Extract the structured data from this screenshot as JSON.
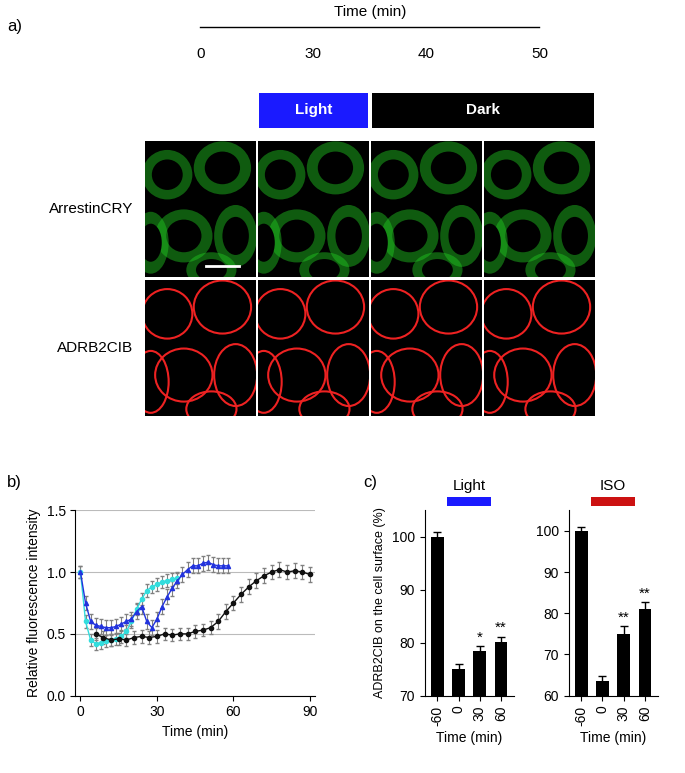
{
  "panel_a": {
    "panel_label": "a)",
    "time_label": "Time (min)",
    "times": [
      0,
      30,
      40,
      50
    ],
    "phases": [
      {
        "text": "Light",
        "color": "#1a1aff",
        "from": 30,
        "to": 30
      },
      {
        "text": "Dark",
        "color": "#000000",
        "from": 40,
        "to": 50
      }
    ],
    "rows": [
      {
        "label": "ArrestinCRY",
        "color": "#22cc22"
      },
      {
        "label": "ADRB2CIB",
        "color": "#ee2222"
      }
    ]
  },
  "chart_data": [
    {
      "type": "line",
      "panel_label": "b)",
      "x_label": "Time (min)",
      "y_label": "Relative fluorescence intensity",
      "xlim": [
        -2,
        92
      ],
      "xticks": [
        0,
        30,
        60,
        90
      ],
      "ylim": [
        0.0,
        1.5
      ],
      "yticks": [
        {
          "value": 0.0,
          "label": "0.0"
        },
        {
          "value": 0.5,
          "label": "0.5"
        },
        {
          "value": 1.0,
          "label": "1.0"
        },
        {
          "value": 1.5,
          "label": "1.5"
        }
      ],
      "grid": true,
      "series": [
        {
          "color": "#33dddd",
          "marker": "o",
          "x": [
            0,
            2,
            4,
            6,
            8,
            10,
            12,
            14,
            16,
            18,
            20,
            22,
            24,
            26,
            28,
            30,
            32,
            34,
            36,
            38
          ],
          "values": [
            1.0,
            0.6,
            0.45,
            0.42,
            0.43,
            0.44,
            0.45,
            0.46,
            0.48,
            0.52,
            0.6,
            0.7,
            0.78,
            0.85,
            0.88,
            0.9,
            0.92,
            0.93,
            0.94,
            0.95
          ],
          "errors": [
            0.05,
            0.05,
            0.05,
            0.05,
            0.05,
            0.05,
            0.05,
            0.05,
            0.05,
            0.05,
            0.05,
            0.05,
            0.05,
            0.05,
            0.05,
            0.05,
            0.05,
            0.05,
            0.05,
            0.05
          ]
        },
        {
          "color": "#2233dd",
          "marker": "^",
          "x": [
            0,
            2,
            4,
            6,
            8,
            10,
            12,
            14,
            16,
            18,
            20,
            22,
            24,
            26,
            28,
            30,
            32,
            34,
            36,
            38,
            40,
            42,
            44,
            46,
            48,
            50,
            52,
            54,
            56,
            58
          ],
          "values": [
            1.0,
            0.75,
            0.6,
            0.57,
            0.56,
            0.55,
            0.55,
            0.56,
            0.58,
            0.6,
            0.62,
            0.68,
            0.72,
            0.6,
            0.55,
            0.62,
            0.72,
            0.8,
            0.87,
            0.93,
            0.98,
            1.02,
            1.05,
            1.05,
            1.07,
            1.08,
            1.06,
            1.05,
            1.05,
            1.05
          ],
          "errors": [
            0.05,
            0.06,
            0.06,
            0.06,
            0.06,
            0.06,
            0.06,
            0.06,
            0.06,
            0.06,
            0.06,
            0.06,
            0.06,
            0.06,
            0.06,
            0.06,
            0.06,
            0.06,
            0.06,
            0.06,
            0.06,
            0.06,
            0.06,
            0.06,
            0.06,
            0.06,
            0.06,
            0.06,
            0.06,
            0.06
          ]
        },
        {
          "color": "#111111",
          "marker": "o",
          "x": [
            6,
            9,
            12,
            15,
            18,
            21,
            24,
            27,
            30,
            33,
            36,
            39,
            42,
            45,
            48,
            51,
            54,
            57,
            60,
            63,
            66,
            69,
            72,
            75,
            78,
            81,
            84,
            87,
            90
          ],
          "values": [
            0.5,
            0.47,
            0.45,
            0.46,
            0.45,
            0.47,
            0.48,
            0.47,
            0.48,
            0.5,
            0.49,
            0.5,
            0.5,
            0.52,
            0.53,
            0.55,
            0.6,
            0.68,
            0.75,
            0.82,
            0.88,
            0.93,
            0.97,
            1.0,
            1.02,
            1.0,
            1.01,
            1.0,
            0.98
          ],
          "errors": [
            0.05,
            0.05,
            0.05,
            0.05,
            0.05,
            0.05,
            0.05,
            0.05,
            0.05,
            0.05,
            0.05,
            0.05,
            0.05,
            0.05,
            0.05,
            0.05,
            0.06,
            0.06,
            0.06,
            0.06,
            0.06,
            0.06,
            0.06,
            0.06,
            0.06,
            0.06,
            0.06,
            0.06,
            0.06
          ]
        }
      ]
    },
    {
      "type": "bar",
      "panel_label": "c)",
      "title": "Light",
      "stimulus_color": "#1a1aff",
      "x_label": "Time (min)",
      "y_label": "ADRB2CIB on the cell surface (%)",
      "categories": [
        "-60",
        "0",
        "30",
        "60"
      ],
      "values": [
        100,
        75,
        78.5,
        80.2
      ],
      "errors": [
        0.8,
        1.0,
        0.9,
        0.9
      ],
      "significance": [
        null,
        null,
        "*",
        "**"
      ],
      "color": "#000000",
      "ylim": [
        70,
        105
      ],
      "yticks": [
        70,
        80,
        90,
        100
      ]
    },
    {
      "type": "bar",
      "title": "ISO",
      "stimulus_color": "#cc1111",
      "x_label": "Time (min)",
      "categories": [
        "-60",
        "0",
        "30",
        "60"
      ],
      "values": [
        100,
        63.5,
        75,
        81
      ],
      "errors": [
        0.8,
        1.2,
        1.8,
        1.8
      ],
      "significance": [
        null,
        null,
        "**",
        "**"
      ],
      "color": "#000000",
      "ylim": [
        60,
        105
      ],
      "yticks": [
        60,
        70,
        80,
        90,
        100
      ]
    }
  ]
}
